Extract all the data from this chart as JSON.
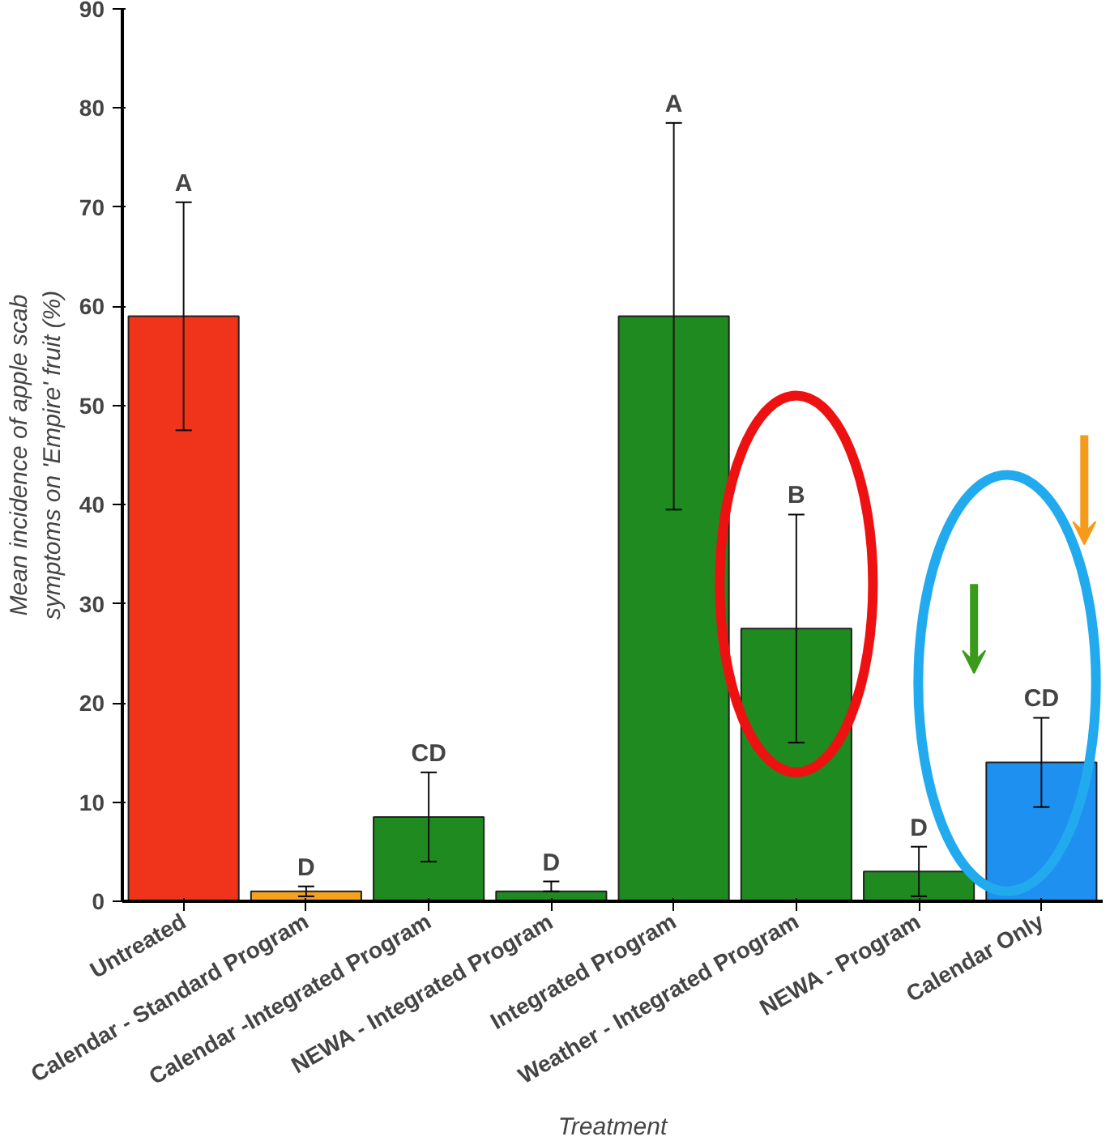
{
  "chart_data": {
    "type": "bar",
    "xlabel": "Treatment",
    "ylabel": "Mean incidence of apple scab\nsymptoms on 'Empire' fruit (%)",
    "categories": [
      "Untreated",
      "Calendar - Standard Program",
      "Calendar -Integrated Program",
      "NEWA - Integrated Program",
      "Integrated Program",
      "Weather - Integrated Program",
      "NEWA - Program",
      "Calendar Only"
    ],
    "values": [
      59,
      1,
      8.5,
      1,
      59,
      27.5,
      3,
      14
    ],
    "colors": [
      "#f0341c",
      "#f5a31c",
      "#1f8a1f",
      "#1f8a1f",
      "#1f8a1f",
      "#1f8a1f",
      "#1f8a1f",
      "#1e90f0"
    ],
    "errors": [
      [
        47.5,
        70.5
      ],
      [
        0.5,
        1.5
      ],
      [
        4,
        13
      ],
      [
        1,
        2
      ],
      [
        39.5,
        78.5
      ],
      [
        16,
        39
      ],
      [
        0.5,
        5.5
      ],
      [
        9.5,
        18.5
      ]
    ],
    "ylim": [
      0,
      90
    ],
    "yticks": [
      0,
      10,
      20,
      30,
      40,
      50,
      60,
      70,
      80,
      90
    ],
    "grid": false,
    "annotations": [
      {
        "text": "A",
        "x": "Untreated",
        "y": 70.5
      },
      {
        "text": "D",
        "x": "Calendar - Standard Program",
        "y": 1.5
      },
      {
        "text": "CD",
        "x": "Calendar -Integrated Program",
        "y": 13
      },
      {
        "text": "D",
        "x": "NEWA - Integrated Program",
        "y": 2
      },
      {
        "text": "A",
        "x": "Integrated Program",
        "y": 78.5
      },
      {
        "text": "B",
        "x": "Weather - Integrated Program",
        "y": 39
      },
      {
        "text": "D",
        "x": "NEWA - Program",
        "y": 5.5
      },
      {
        "text": "CD",
        "x": "Calendar Only",
        "y": 18.5
      }
    ]
  }
}
